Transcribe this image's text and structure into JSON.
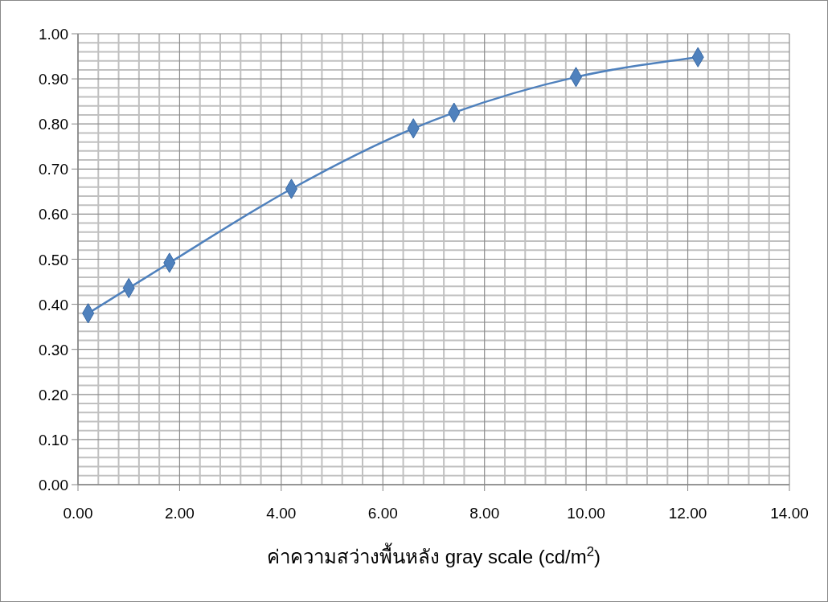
{
  "chart_data": {
    "type": "line",
    "xlabel": "ค่าความสว่างพื้นหลัง gray scale  (cd/m$^{2}$)",
    "x": [
      0.2,
      1.0,
      1.8,
      4.2,
      6.6,
      7.4,
      9.8,
      12.2
    ],
    "series": [
      {
        "color": "#4f81bd",
        "values": [
          0.38,
          0.436,
          0.492,
          0.656,
          0.79,
          0.825,
          0.904,
          0.948
        ]
      }
    ],
    "xlim": [
      0,
      14
    ],
    "xticks": [
      {
        "value": 0,
        "label": "0.00"
      },
      {
        "value": 2,
        "label": "2.00"
      },
      {
        "value": 4,
        "label": "4.00"
      },
      {
        "value": 6,
        "label": "6.00"
      },
      {
        "value": 8,
        "label": "8.00"
      },
      {
        "value": 10,
        "label": "10.00"
      },
      {
        "value": 12,
        "label": "12.00"
      },
      {
        "value": 14,
        "label": "14.00"
      }
    ],
    "ylim": [
      0,
      1
    ],
    "yticks": [
      {
        "value": 0,
        "label": "0.00"
      },
      {
        "value": 0.1,
        "label": "0.10"
      },
      {
        "value": 0.2,
        "label": "0.20"
      },
      {
        "value": 0.3,
        "label": "0.30"
      },
      {
        "value": 0.4,
        "label": "0.40"
      },
      {
        "value": 0.5,
        "label": "0.50"
      },
      {
        "value": 0.6,
        "label": "0.60"
      },
      {
        "value": 0.7,
        "label": "0.70"
      },
      {
        "value": 0.8,
        "label": "0.80"
      },
      {
        "value": 0.9,
        "label": "0.90"
      },
      {
        "value": 1,
        "label": "1.00"
      }
    ],
    "grid": true,
    "marker": "diamond",
    "line_style": "solid"
  }
}
